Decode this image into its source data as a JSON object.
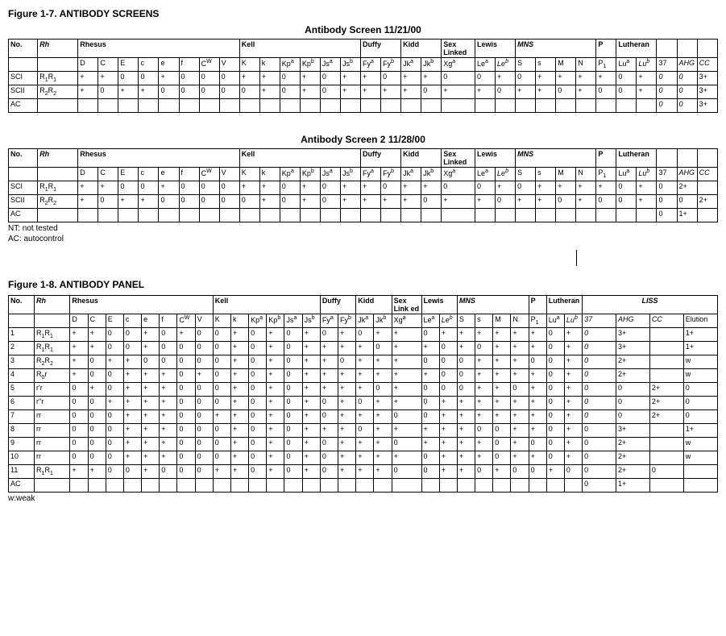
{
  "figure17_title": "Figure 1-7. ANTIBODY SCREENS",
  "figure18_title": "Figure 1-8. ANTIBODY PANEL",
  "screen1_title": "Antibody Screen      11/21/00",
  "screen2_title": "Antibody Screen 2    11/28/00",
  "note_nt": "NT: not tested",
  "note_ac": "AC: autocontrol",
  "note_w": "w:weak",
  "screen_groups": {
    "no": "No.",
    "rh": "Rh",
    "rhesus": "Rhesus",
    "kell": "Kell",
    "duffy": "Duffy",
    "kidd": "Kidd",
    "sex": "Sex Linked",
    "lewis": "Lewis",
    "mns": "MNS",
    "p": "P",
    "lutheran": "Lutheran",
    "liss": "LISS"
  },
  "screen_cols": [
    "D",
    "C",
    "E",
    "c",
    "e",
    "f",
    "C<sup>W</sup>",
    "V",
    "K",
    "k",
    "Kp<sup>a</sup>",
    "Kp<sup>b</sup>",
    "Js<sup>a</sup>",
    "Js<sup>b</sup>",
    "Fy<sup>a</sup>",
    "Fy<sup>b</sup>",
    "Jk<sup>a</sup>",
    "Jk<sup>b</sup>",
    "Xg<sup>a</sup>",
    "Le<sup>a</sup>",
    "<i>Le<sup>b</sup></i>",
    "S",
    "s",
    "M",
    "N",
    "P<sub>1</sub>",
    "Lu<sup>a</sup>",
    "<i>Lu<sup>b</sup></i>",
    "37",
    "<i>AHG</i>",
    "<i>CC</i>"
  ],
  "screen1_rows": [
    {
      "no": "SCI",
      "rh": "R<sub>1</sub>R<sub>1</sub>",
      "cells": [
        "+",
        "+",
        "0",
        "0",
        "+",
        "0",
        "0",
        "0",
        "+",
        "+",
        "0",
        "+",
        "0",
        "+",
        "+",
        "0",
        "+",
        "+",
        "0",
        "0",
        "+",
        "0",
        "+",
        "+",
        "+",
        "+",
        "0",
        "+",
        "<i>0</i>",
        "<i>0</i>",
        "3+"
      ]
    },
    {
      "no": "SCII",
      "rh": "R<sub>2</sub>R<sub>2</sub>",
      "cells": [
        "+",
        "0",
        "+",
        "+",
        "0",
        "0",
        "0",
        "0",
        "0",
        "+",
        "0",
        "+",
        "0",
        "+",
        "+",
        "+",
        "+",
        "0",
        "+",
        "+",
        "0",
        "+",
        "+",
        "0",
        "+",
        "0",
        "0",
        "+",
        "<i>0</i>",
        "<i>0</i>",
        "3+"
      ]
    },
    {
      "no": "AC",
      "rh": "",
      "cells": [
        "",
        "",
        "",
        "",
        "",
        "",
        "",
        "",
        "",
        "",
        "",
        "",
        "",
        "",
        "",
        "",
        "",
        "",
        "",
        "",
        "",
        "",
        "",
        "",
        "",
        "",
        "",
        "",
        "<i>0</i>",
        "<i>0</i>",
        "3+"
      ]
    }
  ],
  "screen2_rows": [
    {
      "no": "SCI",
      "rh": "R<sub>1</sub>R<sub>1</sub>",
      "cells": [
        "+",
        "+",
        "0",
        "0",
        "+",
        "0",
        "0",
        "0",
        "+",
        "+",
        "0",
        "+",
        "0",
        "+",
        "+",
        "0",
        "+",
        "+",
        "0",
        "0",
        "+",
        "0",
        "+",
        "+",
        "+",
        "+",
        "0",
        "+",
        "0",
        "2+",
        ""
      ]
    },
    {
      "no": "SCII",
      "rh": "R<sub>2</sub>R<sub>2</sub>",
      "cells": [
        "+",
        "0",
        "+",
        "+",
        "0",
        "0",
        "0",
        "0",
        "0",
        "+",
        "0",
        "+",
        "0",
        "+",
        "+",
        "+",
        "+",
        "0",
        "+",
        "+",
        "0",
        "+",
        "+",
        "0",
        "+",
        "0",
        "0",
        "+",
        "0",
        "0",
        "2+"
      ]
    },
    {
      "no": "AC",
      "rh": "",
      "cells": [
        "",
        "",
        "",
        "",
        "",
        "",
        "",
        "",
        "",
        "",
        "",
        "",
        "",
        "",
        "",
        "",
        "",
        "",
        "",
        "",
        "",
        "",
        "",
        "",
        "",
        "",
        "",
        "",
        "0",
        "1+",
        ""
      ]
    }
  ],
  "panel_cols": [
    "D",
    "C",
    "E",
    "c",
    "e",
    "f",
    "C<sup>W</sup>",
    "V",
    "K",
    "k",
    "Kp<sup>a</sup>",
    "Kp<sup>b</sup>",
    "Js<sup>a</sup>",
    "Js<sup>b</sup>",
    "Fy<sup>a</sup>",
    "Fy<sup>b</sup>",
    "Jk<sup>a</sup>",
    "Jk<sup>b</sup>",
    "Xg<sup>a</sup>",
    "Le<sup>a</sup>",
    "<i>Le<sup>b</sup></i>",
    "S",
    "s",
    "M",
    "N",
    "P<sub>1</sub>",
    "Lu<sup>a</sup>",
    "<i>Lu<sup>b</sup></i>",
    "<i>37</i>",
    "<i>AHG</i>",
    "<i>CC</i>",
    "Elution"
  ],
  "panel_rows": [
    {
      "no": "1",
      "rh": "R<sub>1</sub>R<sub>1</sub>",
      "cells": [
        "+",
        "+",
        "0",
        "0",
        "+",
        "0",
        "+",
        "0",
        "0",
        "+",
        "0",
        "+",
        "0",
        "+",
        "0",
        "+",
        "0",
        "+",
        "+",
        "0",
        "+",
        "+",
        "+",
        "+",
        "+",
        "+",
        "0",
        "+",
        "<i>0</i>",
        "3+",
        "",
        "1+"
      ]
    },
    {
      "no": "2",
      "rh": "R<sub>1</sub>R<sub>1</sub>",
      "cells": [
        "+",
        "+",
        "0",
        "0",
        "+",
        "0",
        "0",
        "0",
        "0",
        "+",
        "0",
        "+",
        "0",
        "+",
        "+",
        "+",
        "+",
        "0",
        "+",
        "+",
        "0",
        "+",
        "0",
        "+",
        "+",
        "+",
        "0",
        "+",
        "<i>0</i>",
        "3+",
        "",
        "1+"
      ]
    },
    {
      "no": "3",
      "rh": "R<sub>2</sub>R<sub>2</sub>",
      "cells": [
        "+",
        "0",
        "+",
        "+",
        "0",
        "0",
        "0",
        "0",
        "0",
        "+",
        "0",
        "+",
        "0",
        "+",
        "+",
        "0",
        "+",
        "+",
        "+",
        "0",
        "0",
        "0",
        "+",
        "+",
        "+",
        "0",
        "0",
        "+",
        "<i>0</i>",
        "2+",
        "",
        "w"
      ]
    },
    {
      "no": "4",
      "rh": "R<sub>0</sub>r",
      "cells": [
        "+",
        "0",
        "0",
        "+",
        "+",
        "+",
        "0",
        "+",
        "0",
        "+",
        "0",
        "+",
        "0",
        "+",
        "+",
        "+",
        "+",
        "+",
        "+",
        "+",
        "0",
        "0",
        "+",
        "+",
        "+",
        "+",
        "0",
        "+",
        "<i>0</i>",
        "2+",
        "",
        "w"
      ]
    },
    {
      "no": "5",
      "rh": "r'r",
      "cells": [
        "0",
        "+",
        "0",
        "+",
        "+",
        "+",
        "0",
        "0",
        "0",
        "+",
        "0",
        "+",
        "0",
        "+",
        "+",
        "+",
        "+",
        "0",
        "+",
        "0",
        "0",
        "0",
        "+",
        "+",
        "0",
        "+",
        "0",
        "+",
        "<i>0</i>",
        "0",
        "2+",
        "0"
      ]
    },
    {
      "no": "6",
      "rh": "r\"r",
      "cells": [
        "0",
        "0",
        "+",
        "+",
        "+",
        "+",
        "0",
        "0",
        "0",
        "+",
        "0",
        "+",
        "0",
        "+",
        "0",
        "+",
        "0",
        "+",
        "+",
        "0",
        "+",
        "+",
        "+",
        "+",
        "+",
        "+",
        "0",
        "+",
        "<i>0</i>",
        "0",
        "2+",
        "0"
      ]
    },
    {
      "no": "7",
      "rh": "rr",
      "cells": [
        "0",
        "0",
        "0",
        "+",
        "+",
        "+",
        "0",
        "0",
        "+",
        "+",
        "0",
        "+",
        "0",
        "+",
        "0",
        "+",
        "+",
        "+",
        "0",
        "0",
        "+",
        "+",
        "+",
        "+",
        "+",
        "+",
        "0",
        "+",
        "<i>0</i>",
        "0",
        "2+",
        "0"
      ]
    },
    {
      "no": "8",
      "rh": "rr",
      "cells": [
        "0",
        "0",
        "0",
        "+",
        "+",
        "+",
        "0",
        "0",
        "0",
        "+",
        "0",
        "+",
        "0",
        "+",
        "+",
        "+",
        "0",
        "+",
        "+",
        "+",
        "+",
        "+",
        "0",
        "0",
        "+",
        "+",
        "0",
        "+",
        "0",
        "3+",
        "",
        "1+"
      ]
    },
    {
      "no": "9",
      "rh": "rr",
      "cells": [
        "0",
        "0",
        "0",
        "+",
        "+",
        "+",
        "0",
        "0",
        "0",
        "+",
        "0",
        "+",
        "0",
        "+",
        "0",
        "+",
        "+",
        "+",
        "0",
        "+",
        "+",
        "+",
        "+",
        "0",
        "+",
        "0",
        "0",
        "+",
        "0",
        "2+",
        "",
        "w"
      ]
    },
    {
      "no": "10",
      "rh": "rr",
      "cells": [
        "0",
        "0",
        "0",
        "+",
        "+",
        "+",
        "0",
        "0",
        "0",
        "+",
        "0",
        "+",
        "0",
        "+",
        "0",
        "+",
        "+",
        "+",
        "+",
        "0",
        "+",
        "+",
        "+",
        "0",
        "+",
        "+",
        "0",
        "+",
        "0",
        "2+",
        "",
        "w"
      ]
    },
    {
      "no": "11",
      "rh": "R<sub>1</sub>R<sub>1</sub>",
      "cells": [
        "+",
        "+",
        "0",
        "0",
        "+",
        "0",
        "0",
        "0",
        "+",
        "+",
        "0",
        "+",
        "0",
        "+",
        "0",
        "+",
        "+",
        "+",
        "0",
        "0",
        "+",
        "+",
        "0",
        "+",
        "0",
        "0",
        "+",
        "0",
        "0",
        "2+",
        "0",
        ""
      ]
    },
    {
      "no": "AC",
      "rh": "",
      "cells": [
        "",
        "",
        "",
        "",
        "",
        "",
        "",
        "",
        "",
        "",
        "",
        "",
        "",
        "",
        "",
        "",
        "",
        "",
        "",
        "",
        "",
        "",
        "",
        "",
        "",
        "",
        "",
        "",
        "0",
        "1+",
        "",
        ""
      ]
    }
  ]
}
